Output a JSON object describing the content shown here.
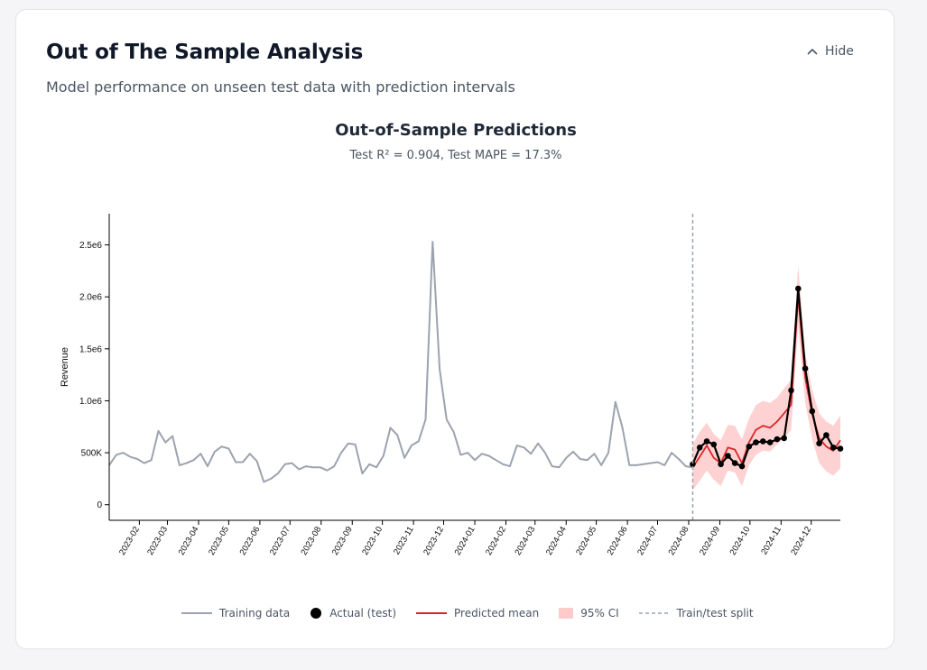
{
  "header": {
    "title": "Out of The Sample Analysis",
    "subtitle": "Model performance on unseen test data with prediction intervals",
    "hide_label": "Hide",
    "hide_icon": "chevron-up-icon"
  },
  "colors": {
    "training": "#9ca3af",
    "actual": "#000000",
    "predicted": "#dc2626",
    "ci": "#fecaca",
    "split": "#9ca3af"
  },
  "chart_data": {
    "type": "line",
    "title": "Out-of-Sample Predictions",
    "subtitle": "Test R² = 0.904, Test MAPE = 17.3%",
    "xlabel": "",
    "ylabel": "Revenue",
    "ylim": [
      -150000,
      2800000
    ],
    "xlim": [
      "2023-01-02",
      "2024-12-30"
    ],
    "yticks": [
      0,
      500000,
      1000000,
      1500000,
      2000000,
      2500000
    ],
    "ytick_labels": [
      "0",
      "500K",
      "1.0e6",
      "1.5e6",
      "2.0e6",
      "2.5e6"
    ],
    "xticks": [
      "2023-02-01",
      "2023-03-01",
      "2023-04-01",
      "2023-05-01",
      "2023-06-01",
      "2023-07-01",
      "2023-08-01",
      "2023-09-01",
      "2023-10-01",
      "2023-11-01",
      "2023-12-01",
      "2024-01-01",
      "2024-02-01",
      "2024-03-01",
      "2024-04-01",
      "2024-05-01",
      "2024-06-01",
      "2024-07-01",
      "2024-08-01",
      "2024-09-01",
      "2024-10-01",
      "2024-11-01",
      "2024-12-01"
    ],
    "xtick_labels": [
      "2023-02",
      "2023-03",
      "2023-04",
      "2023-05",
      "2023-06",
      "2023-07",
      "2023-08",
      "2023-09",
      "2023-10",
      "2023-11",
      "2023-12",
      "2024-01",
      "2024-02",
      "2024-03",
      "2024-04",
      "2024-05",
      "2024-06",
      "2024-07",
      "2024-08",
      "2024-09",
      "2024-10",
      "2024-11",
      "2024-12"
    ],
    "grid": false,
    "legend_position": "bottom",
    "split_date": "2024-08-05",
    "series": [
      {
        "name": "Training data",
        "x": [
          "2023-01-02",
          "2023-01-09",
          "2023-01-16",
          "2023-01-23",
          "2023-01-30",
          "2023-02-06",
          "2023-02-13",
          "2023-02-20",
          "2023-02-27",
          "2023-03-06",
          "2023-03-13",
          "2023-03-20",
          "2023-03-27",
          "2023-04-03",
          "2023-04-10",
          "2023-04-17",
          "2023-04-24",
          "2023-05-01",
          "2023-05-08",
          "2023-05-15",
          "2023-05-22",
          "2023-05-29",
          "2023-06-05",
          "2023-06-12",
          "2023-06-19",
          "2023-06-26",
          "2023-07-03",
          "2023-07-10",
          "2023-07-17",
          "2023-07-24",
          "2023-07-31",
          "2023-08-07",
          "2023-08-14",
          "2023-08-21",
          "2023-08-28",
          "2023-09-04",
          "2023-09-11",
          "2023-09-18",
          "2023-09-25",
          "2023-10-02",
          "2023-10-09",
          "2023-10-16",
          "2023-10-23",
          "2023-10-30",
          "2023-11-06",
          "2023-11-13",
          "2023-11-20",
          "2023-11-27",
          "2023-12-04",
          "2023-12-11",
          "2023-12-18",
          "2023-12-25",
          "2024-01-01",
          "2024-01-08",
          "2024-01-15",
          "2024-01-22",
          "2024-01-29",
          "2024-02-05",
          "2024-02-12",
          "2024-02-19",
          "2024-02-26",
          "2024-03-04",
          "2024-03-11",
          "2024-03-18",
          "2024-03-25",
          "2024-04-01",
          "2024-04-08",
          "2024-04-15",
          "2024-04-22",
          "2024-04-29",
          "2024-05-06",
          "2024-05-13",
          "2024-05-20",
          "2024-05-27",
          "2024-06-03",
          "2024-06-10",
          "2024-06-17",
          "2024-06-24",
          "2024-07-01",
          "2024-07-08",
          "2024-07-15",
          "2024-07-22",
          "2024-07-29",
          "2024-08-05"
        ],
        "values": [
          380000,
          480000,
          500000,
          460000,
          440000,
          400000,
          430000,
          710000,
          600000,
          660000,
          380000,
          400000,
          430000,
          490000,
          370000,
          510000,
          560000,
          540000,
          410000,
          410000,
          490000,
          420000,
          220000,
          250000,
          300000,
          390000,
          400000,
          340000,
          370000,
          360000,
          360000,
          330000,
          370000,
          500000,
          590000,
          580000,
          300000,
          390000,
          360000,
          470000,
          740000,
          670000,
          450000,
          570000,
          610000,
          820000,
          2530000,
          1300000,
          820000,
          700000,
          480000,
          500000,
          430000,
          490000,
          470000,
          430000,
          390000,
          370000,
          570000,
          550000,
          490000,
          590000,
          500000,
          370000,
          360000,
          450000,
          510000,
          440000,
          430000,
          490000,
          380000,
          500000,
          990000,
          740000,
          380000,
          380000,
          390000,
          400000,
          410000,
          380000,
          500000,
          440000,
          370000,
          360000
        ]
      },
      {
        "name": "Actual (test)",
        "x": [
          "2024-08-05",
          "2024-08-12",
          "2024-08-19",
          "2024-08-26",
          "2024-09-02",
          "2024-09-09",
          "2024-09-16",
          "2024-09-23",
          "2024-09-30",
          "2024-10-07",
          "2024-10-14",
          "2024-10-21",
          "2024-10-28",
          "2024-11-04",
          "2024-11-11",
          "2024-11-18",
          "2024-11-25",
          "2024-12-02",
          "2024-12-09",
          "2024-12-16",
          "2024-12-23",
          "2024-12-30"
        ],
        "values": [
          390000,
          550000,
          610000,
          580000,
          390000,
          470000,
          400000,
          370000,
          560000,
          600000,
          610000,
          600000,
          630000,
          640000,
          1100000,
          2080000,
          1310000,
          900000,
          590000,
          670000,
          550000,
          540000
        ]
      },
      {
        "name": "Predicted mean",
        "x": [
          "2024-08-05",
          "2024-08-12",
          "2024-08-19",
          "2024-08-26",
          "2024-09-02",
          "2024-09-09",
          "2024-09-16",
          "2024-09-23",
          "2024-09-30",
          "2024-10-07",
          "2024-10-14",
          "2024-10-21",
          "2024-10-28",
          "2024-11-04",
          "2024-11-11",
          "2024-11-18",
          "2024-11-25",
          "2024-12-02",
          "2024-12-09",
          "2024-12-16",
          "2024-12-23",
          "2024-12-30"
        ],
        "values": [
          360000,
          460000,
          570000,
          450000,
          400000,
          550000,
          530000,
          400000,
          600000,
          720000,
          760000,
          740000,
          800000,
          880000,
          960000,
          2010000,
          1220000,
          870000,
          640000,
          560000,
          520000,
          620000
        ]
      },
      {
        "name": "95% CI",
        "x": [
          "2024-08-05",
          "2024-08-12",
          "2024-08-19",
          "2024-08-26",
          "2024-09-02",
          "2024-09-09",
          "2024-09-16",
          "2024-09-23",
          "2024-09-30",
          "2024-10-07",
          "2024-10-14",
          "2024-10-21",
          "2024-10-28",
          "2024-11-04",
          "2024-11-11",
          "2024-11-18",
          "2024-11-25",
          "2024-12-02",
          "2024-12-09",
          "2024-12-16",
          "2024-12-23",
          "2024-12-30"
        ],
        "lower": [
          140000,
          230000,
          330000,
          240000,
          180000,
          330000,
          310000,
          180000,
          380000,
          480000,
          520000,
          510000,
          580000,
          640000,
          720000,
          1720000,
          980000,
          630000,
          400000,
          320000,
          280000,
          350000
        ],
        "upper": [
          580000,
          700000,
          790000,
          680000,
          620000,
          770000,
          760000,
          630000,
          830000,
          960000,
          1000000,
          980000,
          1030000,
          1120000,
          1200000,
          2300000,
          1460000,
          1100000,
          880000,
          800000,
          760000,
          860000
        ]
      }
    ]
  },
  "legend": {
    "items": [
      {
        "label": "Training data"
      },
      {
        "label": "Actual (test)"
      },
      {
        "label": "Predicted mean"
      },
      {
        "label": "95% CI"
      },
      {
        "label": "Train/test split"
      }
    ]
  }
}
